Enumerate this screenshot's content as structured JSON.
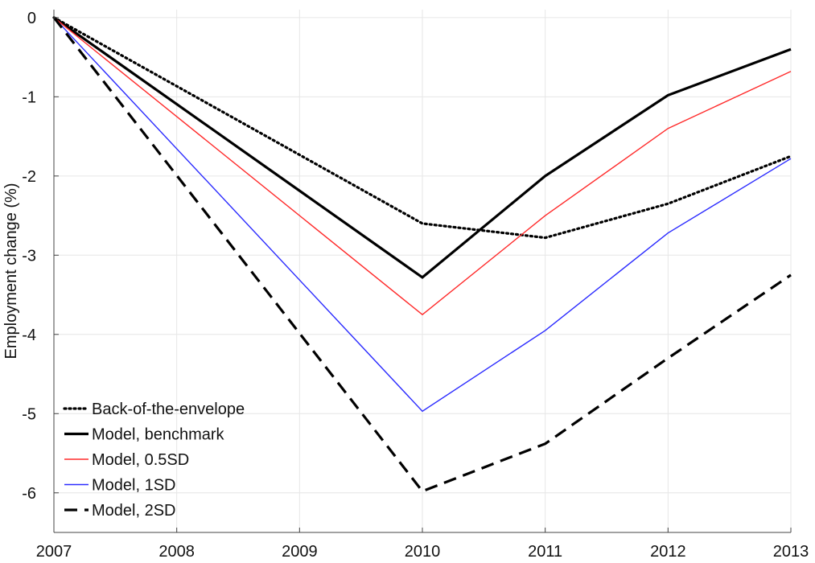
{
  "chart_data": {
    "type": "line",
    "title": "",
    "xlabel": "",
    "ylabel": "Employment change (%)",
    "x": [
      2007,
      2008,
      2009,
      2010,
      2011,
      2012,
      2013
    ],
    "xlim": [
      2007,
      2013
    ],
    "ylim": [
      -6.5,
      0.1
    ],
    "xticks": [
      "2007",
      "2008",
      "2009",
      "2010",
      "2011",
      "2012",
      "2013"
    ],
    "yticks": [
      0,
      -1,
      -2,
      -3,
      -4,
      -5,
      -6
    ],
    "ytick_labels": [
      "0",
      "-1",
      "-2",
      "-3",
      "-4",
      "-5",
      "-6"
    ],
    "grid": true,
    "legend_position": "bottom-left",
    "series": [
      {
        "name": "Back-of-the-envelope",
        "color": "#000000",
        "style": "dotted",
        "x": [
          2007,
          2010,
          2011,
          2012,
          2013
        ],
        "values": [
          0,
          -2.6,
          -2.78,
          -2.35,
          -1.75
        ]
      },
      {
        "name": "Model, benchmark",
        "color": "#000000",
        "style": "solid-thick",
        "x": [
          2007,
          2010,
          2011,
          2012,
          2013
        ],
        "values": [
          0,
          -3.28,
          -2.0,
          -0.98,
          -0.4
        ]
      },
      {
        "name": "Model, 0.5SD",
        "color": "#ff2a2a",
        "style": "solid-thin",
        "x": [
          2007,
          2010,
          2011,
          2012,
          2013
        ],
        "values": [
          0,
          -3.75,
          -2.5,
          -1.4,
          -0.68
        ]
      },
      {
        "name": "Model, 1SD",
        "color": "#2a2aff",
        "style": "solid-thin",
        "x": [
          2007,
          2010,
          2011,
          2012,
          2013
        ],
        "values": [
          0,
          -4.97,
          -3.95,
          -2.72,
          -1.78
        ]
      },
      {
        "name": "Model, 2SD",
        "color": "#000000",
        "style": "dashed",
        "x": [
          2007,
          2010,
          2011,
          2012,
          2013
        ],
        "values": [
          0,
          -5.98,
          -5.38,
          -4.3,
          -3.25
        ]
      }
    ]
  }
}
